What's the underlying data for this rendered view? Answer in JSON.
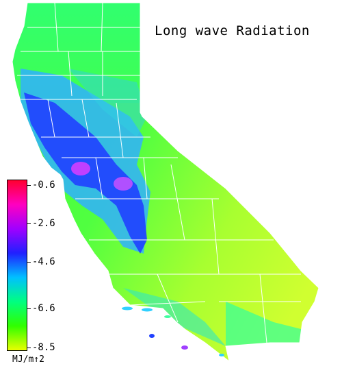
{
  "title": "Long wave Radiation",
  "legend": {
    "units": "MJ/m↑2",
    "ticks": [
      "-0.6",
      "-2.6",
      "-4.6",
      "-6.6",
      "-8.5"
    ],
    "gradient_colors": [
      "#ff0030",
      "#ff00c0",
      "#a000ff",
      "#2020ff",
      "#00c0ff",
      "#00ff80",
      "#30ff00",
      "#e8ff00"
    ]
  },
  "palette": {
    "high_value_magenta": "#c040ff",
    "dark_blue": "#2030ff",
    "light_blue": "#30a0ff",
    "green": "#40ff40",
    "yellow_green": "#c0ff30",
    "county_lines": "#ffffff"
  }
}
